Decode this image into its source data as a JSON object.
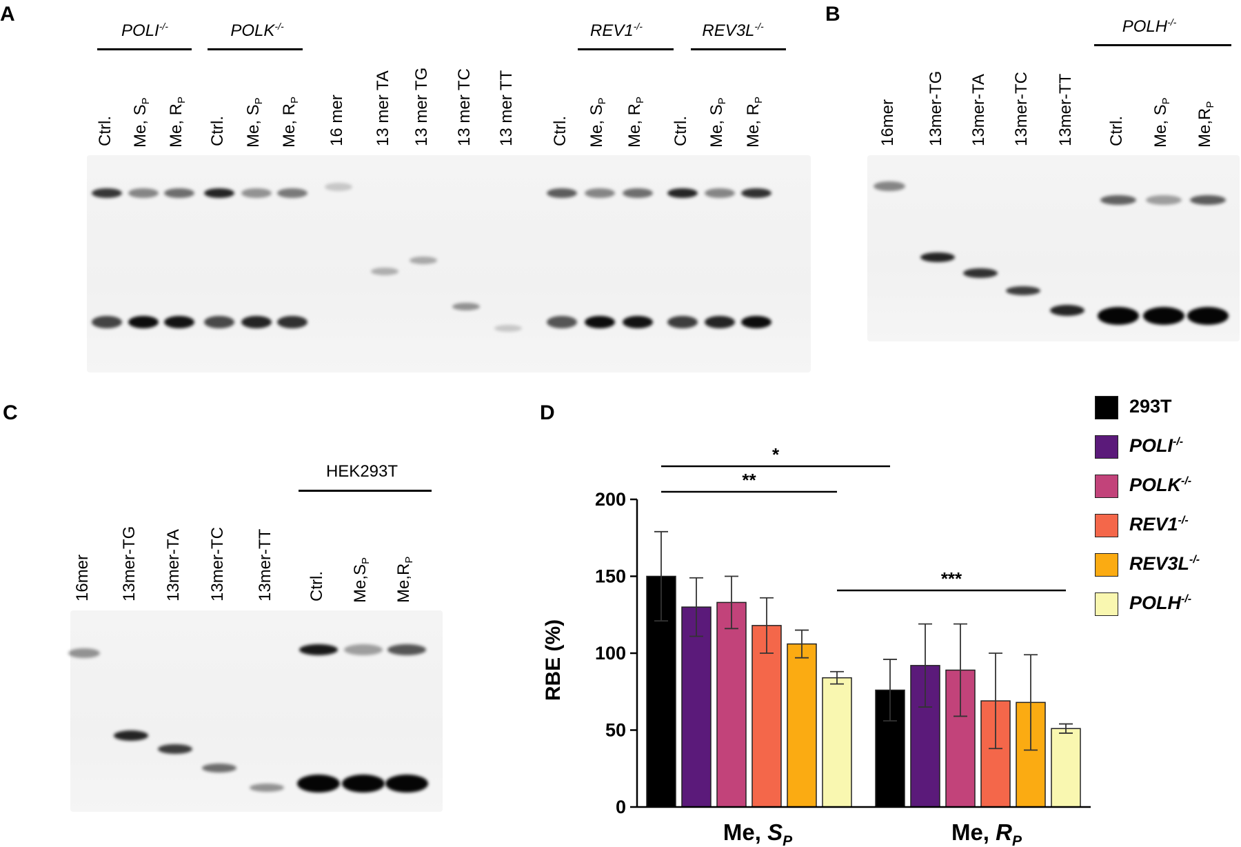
{
  "panels": {
    "a": {
      "label": "A",
      "groups": [
        {
          "name": "POLI",
          "sup": "-/-"
        },
        {
          "name": "POLK",
          "sup": "-/-"
        },
        {
          "name": "REV1",
          "sup": "-/-"
        },
        {
          "name": "REV3L",
          "sup": "-/-"
        }
      ],
      "lanes": [
        {
          "text": "Ctrl.",
          "sub": ""
        },
        {
          "text": "Me, S",
          "sub": "P"
        },
        {
          "text": "Me, R",
          "sub": "P"
        },
        {
          "text": "Ctrl.",
          "sub": ""
        },
        {
          "text": "Me, S",
          "sub": "P"
        },
        {
          "text": "Me, R",
          "sub": "P"
        },
        {
          "text": "16 mer",
          "sub": ""
        },
        {
          "text": "13 mer TA",
          "sub": ""
        },
        {
          "text": "13 mer TG",
          "sub": ""
        },
        {
          "text": "13 mer TC",
          "sub": ""
        },
        {
          "text": "13 mer TT",
          "sub": ""
        },
        {
          "text": "Ctrl.",
          "sub": ""
        },
        {
          "text": "Me, S",
          "sub": "P"
        },
        {
          "text": "Me, R",
          "sub": "P"
        },
        {
          "text": "Ctrl.",
          "sub": ""
        },
        {
          "text": "Me, S",
          "sub": "P"
        },
        {
          "text": "Me, R",
          "sub": "P"
        }
      ]
    },
    "b": {
      "label": "B",
      "groups": [
        {
          "name": "POLH",
          "sup": "-/-"
        }
      ],
      "lanes": [
        {
          "text": "16mer",
          "sub": ""
        },
        {
          "text": "13mer-TG",
          "sub": ""
        },
        {
          "text": "13mer-TA",
          "sub": ""
        },
        {
          "text": "13mer-TC",
          "sub": ""
        },
        {
          "text": "13mer-TT",
          "sub": ""
        },
        {
          "text": "Ctrl.",
          "sub": ""
        },
        {
          "text": "Me, S",
          "sub": "P"
        },
        {
          "text": "Me,R",
          "sub": "P"
        }
      ]
    },
    "c": {
      "label": "C",
      "groups": [
        {
          "name": "HEK293T",
          "sup": ""
        }
      ],
      "lanes": [
        {
          "text": "16mer",
          "sub": ""
        },
        {
          "text": "13mer-TG",
          "sub": ""
        },
        {
          "text": "13mer-TA",
          "sub": ""
        },
        {
          "text": "13mer-TC",
          "sub": ""
        },
        {
          "text": "13mer-TT",
          "sub": ""
        },
        {
          "text": "Ctrl.",
          "sub": ""
        },
        {
          "text": "Me,S",
          "sub": "P"
        },
        {
          "text": "Me,R",
          "sub": "P"
        }
      ]
    },
    "d": {
      "label": "D"
    }
  },
  "colors": {
    "293T": "#000000",
    "POLI": "#5b1a7a",
    "POLK": "#c2437a",
    "REV1": "#f4674a",
    "REV3L": "#fbab12",
    "POLH": "#f9f7b0"
  },
  "legend": [
    {
      "name": "293T",
      "sup": "",
      "italic": false,
      "color": "#000000"
    },
    {
      "name": "POLI",
      "sup": "-/-",
      "italic": true,
      "color": "#5b1a7a"
    },
    {
      "name": "POLK",
      "sup": "-/-",
      "italic": true,
      "color": "#c2437a"
    },
    {
      "name": "REV1",
      "sup": "-/-",
      "italic": true,
      "color": "#f4674a"
    },
    {
      "name": "REV3L",
      "sup": "-/-",
      "italic": true,
      "color": "#fbab12"
    },
    {
      "name": "POLH",
      "sup": "-/-",
      "italic": true,
      "color": "#f9f7b0"
    }
  ],
  "chart_data": {
    "type": "bar",
    "title": "",
    "xlabel": "",
    "ylabel": "RBE (%)",
    "ylim": [
      0,
      200
    ],
    "yticks": [
      0,
      50,
      100,
      150,
      200
    ],
    "categories": [
      {
        "text": "Me, ",
        "sub_italic": "S",
        "sub": "P"
      },
      {
        "text": "Me, ",
        "sub_italic": "R",
        "sub": "P"
      }
    ],
    "series": [
      {
        "name": "293T",
        "values": [
          150,
          76
        ],
        "errors": [
          29,
          20
        ]
      },
      {
        "name": "POLI-/-",
        "values": [
          130,
          92
        ],
        "errors": [
          19,
          27
        ]
      },
      {
        "name": "POLK-/-",
        "values": [
          133,
          89
        ],
        "errors": [
          17,
          30
        ]
      },
      {
        "name": "REV1-/-",
        "values": [
          118,
          69
        ],
        "errors": [
          18,
          31
        ]
      },
      {
        "name": "REV3L-/-",
        "values": [
          106,
          68
        ],
        "errors": [
          9,
          31
        ]
      },
      {
        "name": "POLH-/-",
        "values": [
          84,
          51
        ],
        "errors": [
          4,
          3
        ]
      }
    ],
    "significance": [
      {
        "label": "*",
        "from": "Me, S_P / 293T",
        "to": "Me, R_P / 293T"
      },
      {
        "label": "**",
        "from": "Me, S_P / 293T",
        "to": "Me, S_P / POLH-/-"
      },
      {
        "label": "***",
        "from": "Me, S_P / POLH-/-",
        "to": "Me, R_P / POLH-/-"
      }
    ],
    "legend_position": "right"
  }
}
